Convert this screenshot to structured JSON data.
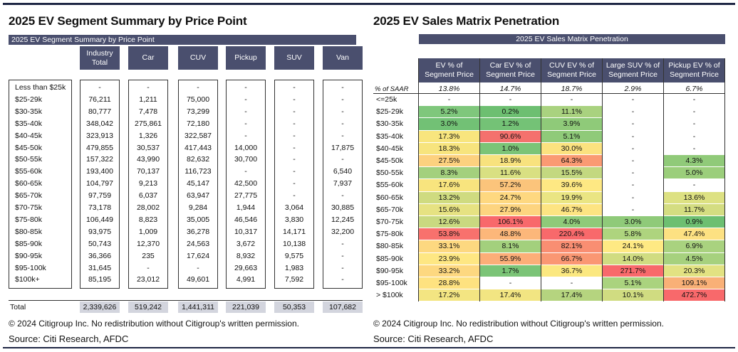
{
  "left": {
    "title": "2025 EV Segment Summary by Price Point",
    "bar_label": "2025 EV Segment Summary by Price Point",
    "columns": [
      "Industry Total",
      "Car",
      "CUV",
      "Pickup",
      "SUV",
      "Van"
    ],
    "rows": [
      {
        "label": "Less than $25k",
        "values": [
          "-",
          "-",
          "-",
          "-",
          "-",
          "-"
        ]
      },
      {
        "label": "$25-29k",
        "values": [
          "76,211",
          "1,211",
          "75,000",
          "-",
          "-",
          "-"
        ]
      },
      {
        "label": "$30-35k",
        "values": [
          "80,777",
          "7,478",
          "73,299",
          "-",
          "-",
          "-"
        ]
      },
      {
        "label": "$35-40k",
        "values": [
          "348,042",
          "275,861",
          "72,180",
          "-",
          "-",
          "-"
        ]
      },
      {
        "label": "$40-45k",
        "values": [
          "323,913",
          "1,326",
          "322,587",
          "-",
          "-",
          "-"
        ]
      },
      {
        "label": "$45-50k",
        "values": [
          "479,855",
          "30,537",
          "417,443",
          "14,000",
          "-",
          "17,875"
        ]
      },
      {
        "label": "$50-55k",
        "values": [
          "157,322",
          "43,990",
          "82,632",
          "30,700",
          "-",
          "-"
        ]
      },
      {
        "label": "$55-60k",
        "values": [
          "193,400",
          "70,137",
          "116,723",
          "-",
          "-",
          "6,540"
        ]
      },
      {
        "label": "$60-65k",
        "values": [
          "104,797",
          "9,213",
          "45,147",
          "42,500",
          "-",
          "7,937"
        ]
      },
      {
        "label": "$65-70k",
        "values": [
          "97,759",
          "6,037",
          "63,947",
          "27,775",
          "-",
          "-"
        ]
      },
      {
        "label": "$70-75k",
        "values": [
          "73,178",
          "28,002",
          "9,284",
          "1,944",
          "3,064",
          "30,885"
        ]
      },
      {
        "label": "$75-80k",
        "values": [
          "106,449",
          "8,823",
          "35,005",
          "46,546",
          "3,830",
          "12,245"
        ]
      },
      {
        "label": "$80-85k",
        "values": [
          "93,975",
          "1,009",
          "36,278",
          "10,317",
          "14,171",
          "32,200"
        ]
      },
      {
        "label": "$85-90k",
        "values": [
          "50,743",
          "12,370",
          "24,563",
          "3,672",
          "10,138",
          "-"
        ]
      },
      {
        "label": "$90-95k",
        "values": [
          "36,366",
          "235",
          "17,624",
          "8,932",
          "9,575",
          "-"
        ]
      },
      {
        "label": "$95-100k",
        "values": [
          "31,645",
          "-",
          "-",
          "29,663",
          "1,983",
          "-"
        ]
      },
      {
        "label": "$100k+",
        "values": [
          "85,195",
          "23,012",
          "49,601",
          "4,991",
          "7,592",
          "-"
        ]
      }
    ],
    "total": {
      "label": "Total",
      "values": [
        "2,339,626",
        "519,242",
        "1,441,311",
        "221,039",
        "50,353",
        "107,682"
      ]
    },
    "copyright": "© 2024 Citigroup Inc. No redistribution without Citigroup's written permission.",
    "source": "Source: Citi Research, AFDC"
  },
  "right": {
    "title": "2025 EV Sales Matrix Penetration",
    "bar_label": "2025 EV Sales Matrix Penetration",
    "columns": [
      "EV % of Segment Price",
      "Car EV % of Segment Price",
      "CUV EV % of Segment Price",
      "Large SUV % of Segment Price",
      "Pickup EV % of Segment Price"
    ],
    "saar_label": "% of SAAR",
    "saar_values": [
      "13.8%",
      "14.7%",
      "18.7%",
      "2.9%",
      "6.7%"
    ],
    "rows": [
      {
        "label": "<=25k",
        "values": [
          "-",
          "-",
          "-",
          "-",
          "-"
        ]
      },
      {
        "label": "$25-29k",
        "values": [
          "5.2%",
          "0.2%",
          "11.1%",
          "-",
          "-"
        ]
      },
      {
        "label": "$30-35k",
        "values": [
          "3.0%",
          "1.2%",
          "3.9%",
          "-",
          "-"
        ]
      },
      {
        "label": "$35-40k",
        "values": [
          "17.3%",
          "90.6%",
          "5.1%",
          "-",
          "-"
        ]
      },
      {
        "label": "$40-45k",
        "values": [
          "18.3%",
          "1.0%",
          "30.0%",
          "-",
          "-"
        ]
      },
      {
        "label": "$45-50k",
        "values": [
          "27.5%",
          "18.9%",
          "64.3%",
          "-",
          "4.3%"
        ]
      },
      {
        "label": "$50-55k",
        "values": [
          "8.3%",
          "11.6%",
          "15.5%",
          "-",
          "5.0%"
        ]
      },
      {
        "label": "$55-60k",
        "values": [
          "17.6%",
          "57.2%",
          "39.6%",
          "-",
          "-"
        ]
      },
      {
        "label": "$60-65k",
        "values": [
          "13.2%",
          "24.7%",
          "19.9%",
          "-",
          "13.6%"
        ]
      },
      {
        "label": "$65-70k",
        "values": [
          "15.6%",
          "27.9%",
          "46.7%",
          "-",
          "11.7%"
        ]
      },
      {
        "label": "$70-75k",
        "values": [
          "12.6%",
          "106.1%",
          "4.0%",
          "3.0%",
          "0.9%"
        ]
      },
      {
        "label": "$75-80k",
        "values": [
          "53.8%",
          "48.8%",
          "220.4%",
          "5.8%",
          "47.4%"
        ]
      },
      {
        "label": "$80-85k",
        "values": [
          "33.1%",
          "8.1%",
          "82.1%",
          "24.1%",
          "6.9%"
        ]
      },
      {
        "label": "$85-90k",
        "values": [
          "23.9%",
          "55.9%",
          "66.7%",
          "14.0%",
          "4.5%"
        ]
      },
      {
        "label": "$90-95k",
        "values": [
          "33.2%",
          "1.7%",
          "36.7%",
          "271.7%",
          "20.3%"
        ]
      },
      {
        "label": "$95-100k",
        "values": [
          "28.8%",
          "-",
          "-",
          "5.1%",
          "109.1%"
        ]
      },
      {
        "label": "> $100k",
        "values": [
          "17.2%",
          "17.4%",
          "17.4%",
          "10.1%",
          "472.7%"
        ]
      }
    ],
    "colors": [
      [
        "#ffffff",
        "#ffffff",
        "#ffffff",
        "#ffffff",
        "#ffffff"
      ],
      [
        "#7fc77c",
        "#6dbf71",
        "#a9d27f",
        "#ffffff",
        "#ffffff"
      ],
      [
        "#72c175",
        "#74c276",
        "#8fca79",
        "#ffffff",
        "#ffffff"
      ],
      [
        "#f8e57e",
        "#f4716d",
        "#8fca79",
        "#ffffff",
        "#ffffff"
      ],
      [
        "#f7e47e",
        "#7bc477",
        "#fbe27f",
        "#ffffff",
        "#ffffff"
      ],
      [
        "#fdd17f",
        "#f8e27e",
        "#fa9a73",
        "#ffffff",
        "#90ca79"
      ],
      [
        "#a3d07d",
        "#d9e082",
        "#c3d880",
        "#ffffff",
        "#9bce7b"
      ],
      [
        "#f8e47e",
        "#fbc47b",
        "#fee883",
        "#ffffff",
        "#ffffff"
      ],
      [
        "#cfdb80",
        "#fed880",
        "#eae583",
        "#ffffff",
        "#dde182"
      ],
      [
        "#e6e282",
        "#fdd47f",
        "#fde482",
        "#ffffff",
        "#d4dd81"
      ],
      [
        "#c9d980",
        "#f8696b",
        "#8fca79",
        "#8fca79",
        "#6dbf71"
      ],
      [
        "#f8716d",
        "#fcb77a",
        "#f8696b",
        "#aed47e",
        "#fde182"
      ],
      [
        "#fdd880",
        "#a3d07d",
        "#f98e72",
        "#fee983",
        "#a9d27f"
      ],
      [
        "#fee783",
        "#fcae78",
        "#fa9773",
        "#d0dc81",
        "#a6d17e"
      ],
      [
        "#fdd880",
        "#7bc477",
        "#fbe880",
        "#f8696b",
        "#e2e282"
      ],
      [
        "#fee280",
        "#ffffff",
        "#ffffff",
        "#aad37e",
        "#f9b077"
      ],
      [
        "#f3e582",
        "#f2e582",
        "#b5d47f",
        "#d0dc81",
        "#f8696b"
      ]
    ],
    "copyright": "© 2024 Citigroup Inc. No redistribution without Citigroup's written permission.",
    "source": "Source: Citi Research, AFDC"
  },
  "chart_data": [
    {
      "type": "table",
      "title": "2025 EV Segment Summary by Price Point",
      "columns": [
        "Industry Total",
        "Car",
        "CUV",
        "Pickup",
        "SUV",
        "Van"
      ],
      "categories": [
        "Less than $25k",
        "$25-29k",
        "$30-35k",
        "$35-40k",
        "$40-45k",
        "$45-50k",
        "$50-55k",
        "$55-60k",
        "$60-65k",
        "$65-70k",
        "$70-75k",
        "$75-80k",
        "$80-85k",
        "$85-90k",
        "$90-95k",
        "$95-100k",
        "$100k+"
      ]
    },
    {
      "type": "heatmap",
      "title": "2025 EV Sales Matrix Penetration",
      "columns": [
        "EV % of Segment Price",
        "Car EV % of Segment Price",
        "CUV EV % of Segment Price",
        "Large SUV % of Segment Price",
        "Pickup EV % of Segment Price"
      ]
    }
  ]
}
